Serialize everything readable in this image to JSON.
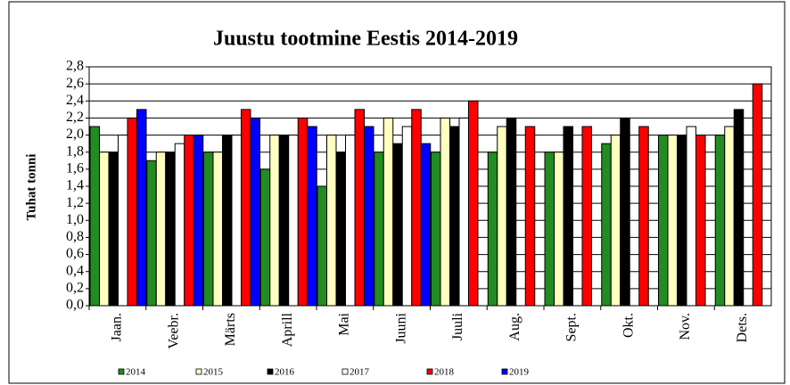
{
  "chart_data": {
    "type": "bar",
    "title": "Juustu tootmine  Eestis 2014-2019",
    "y_label": "Tuhat tonni",
    "categories": [
      "Jaan.",
      "Veebr.",
      "Märts",
      "Aprill",
      "Mai",
      "Juuni",
      "Juuli",
      "Aug.",
      "Sept.",
      "Okt.",
      "Nov.",
      "Dets."
    ],
    "series": [
      {
        "name": "2014",
        "color": "#228b22",
        "values": [
          2.1,
          1.7,
          1.8,
          1.6,
          1.4,
          1.8,
          1.8,
          1.8,
          1.8,
          1.9,
          2.0,
          2.0
        ]
      },
      {
        "name": "2015",
        "color": "#ffffc0",
        "values": [
          1.8,
          1.8,
          1.8,
          2.0,
          2.0,
          2.2,
          2.2,
          2.1,
          1.8,
          2.0,
          2.0,
          2.1
        ]
      },
      {
        "name": "2016",
        "color": "#000000",
        "values": [
          1.8,
          1.8,
          2.0,
          2.0,
          1.8,
          1.9,
          2.1,
          2.2,
          2.1,
          2.2,
          2.0,
          2.3
        ]
      },
      {
        "name": "2017",
        "color": "#ffffff",
        "values": [
          2.0,
          1.9,
          2.0,
          2.0,
          2.0,
          2.1,
          2.2,
          null,
          null,
          null,
          2.1,
          null
        ]
      },
      {
        "name": "2018",
        "color": "#ff0000",
        "values": [
          2.2,
          2.0,
          2.3,
          2.2,
          2.3,
          2.3,
          2.4,
          2.1,
          2.1,
          2.1,
          2.0,
          2.6
        ]
      },
      {
        "name": "2019",
        "color": "#0000ff",
        "values": [
          2.3,
          2.0,
          2.2,
          2.1,
          2.1,
          1.9,
          null,
          null,
          null,
          null,
          null,
          null
        ]
      }
    ],
    "ylim": [
      0,
      2.8
    ],
    "yticks": [
      {
        "value": 0,
        "label": "0,0"
      },
      {
        "value": 0.2,
        "label": "0,2"
      },
      {
        "value": 0.4,
        "label": "0,4"
      },
      {
        "value": 0.6,
        "label": "0,6"
      },
      {
        "value": 0.8,
        "label": "0,8"
      },
      {
        "value": 1.0,
        "label": "1,0"
      },
      {
        "value": 1.2,
        "label": "1,2"
      },
      {
        "value": 1.4,
        "label": "1,4"
      },
      {
        "value": 1.6,
        "label": "1,6"
      },
      {
        "value": 1.8,
        "label": "1,8"
      },
      {
        "value": 2.0,
        "label": "2,0"
      },
      {
        "value": 2.2,
        "label": "2,2"
      },
      {
        "value": 2.4,
        "label": "2,4"
      },
      {
        "value": 2.6,
        "label": "2,6"
      },
      {
        "value": 2.8,
        "label": "2,8"
      }
    ],
    "grid": true
  }
}
